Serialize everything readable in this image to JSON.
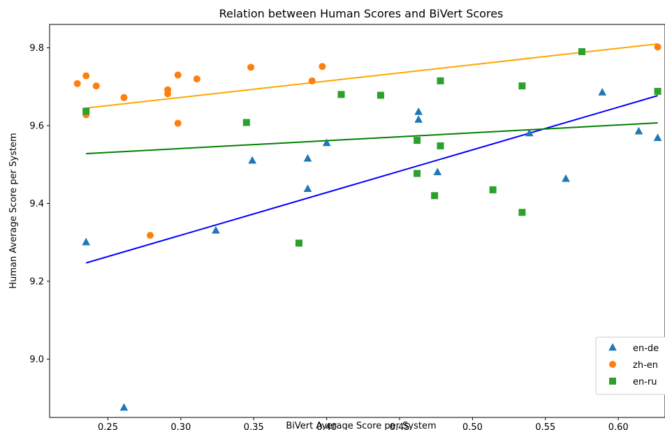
{
  "chart_data": {
    "type": "scatter",
    "title": "Relation between Human Scores and BiVert Scores",
    "xlabel": "BiVert Average Score per System",
    "ylabel": "Human Average Score per System",
    "xlim": [
      0.21,
      0.632
    ],
    "ylim": [
      8.85,
      9.86
    ],
    "xticks": [
      0.25,
      0.3,
      0.35,
      0.4,
      0.45,
      0.5,
      0.55,
      0.6
    ],
    "xtick_labels": [
      "0.25",
      "0.30",
      "0.35",
      "0.40",
      "0.45",
      "0.50",
      "0.55",
      "0.60"
    ],
    "yticks": [
      9.0,
      9.2,
      9.4,
      9.6,
      9.8
    ],
    "ytick_labels": [
      "9.0",
      "9.2",
      "9.4",
      "9.6",
      "9.8"
    ],
    "grid": false,
    "legend_position": "bottom-right",
    "series": [
      {
        "name": "en-de",
        "marker": "triangle",
        "color": "#1f77b4",
        "line_color": "#0000ff",
        "points": [
          [
            0.235,
            9.3
          ],
          [
            0.261,
            8.875
          ],
          [
            0.324,
            9.33
          ],
          [
            0.349,
            9.51
          ],
          [
            0.387,
            9.515
          ],
          [
            0.387,
            9.437
          ],
          [
            0.4,
            9.555
          ],
          [
            0.463,
            9.635
          ],
          [
            0.463,
            9.615
          ],
          [
            0.476,
            9.48
          ],
          [
            0.539,
            9.58
          ],
          [
            0.564,
            9.463
          ],
          [
            0.589,
            9.685
          ],
          [
            0.614,
            9.585
          ],
          [
            0.627,
            9.568
          ]
        ],
        "fit": [
          [
            0.235,
            9.247
          ],
          [
            0.627,
            9.677
          ]
        ]
      },
      {
        "name": "zh-en",
        "marker": "circle",
        "color": "#ff7f0e",
        "line_color": "#ffa500",
        "points": [
          [
            0.229,
            9.708
          ],
          [
            0.235,
            9.728
          ],
          [
            0.235,
            9.628
          ],
          [
            0.242,
            9.702
          ],
          [
            0.261,
            9.672
          ],
          [
            0.279,
            9.318
          ],
          [
            0.291,
            9.692
          ],
          [
            0.291,
            9.682
          ],
          [
            0.298,
            9.73
          ],
          [
            0.298,
            9.606
          ],
          [
            0.311,
            9.72
          ],
          [
            0.348,
            9.75
          ],
          [
            0.39,
            9.715
          ],
          [
            0.397,
            9.752
          ],
          [
            0.627,
            9.802
          ]
        ],
        "fit": [
          [
            0.235,
            9.645
          ],
          [
            0.627,
            9.81
          ]
        ]
      },
      {
        "name": "en-ru",
        "marker": "square",
        "color": "#2ca02c",
        "line_color": "#008000",
        "points": [
          [
            0.235,
            9.637
          ],
          [
            0.345,
            9.608
          ],
          [
            0.381,
            9.298
          ],
          [
            0.41,
            9.68
          ],
          [
            0.437,
            9.678
          ],
          [
            0.462,
            9.562
          ],
          [
            0.462,
            9.477
          ],
          [
            0.474,
            9.42
          ],
          [
            0.478,
            9.548
          ],
          [
            0.478,
            9.715
          ],
          [
            0.514,
            9.435
          ],
          [
            0.534,
            9.702
          ],
          [
            0.534,
            9.377
          ],
          [
            0.575,
            9.79
          ],
          [
            0.627,
            9.688
          ]
        ],
        "fit": [
          [
            0.235,
            9.528
          ],
          [
            0.627,
            9.607
          ]
        ]
      }
    ]
  }
}
